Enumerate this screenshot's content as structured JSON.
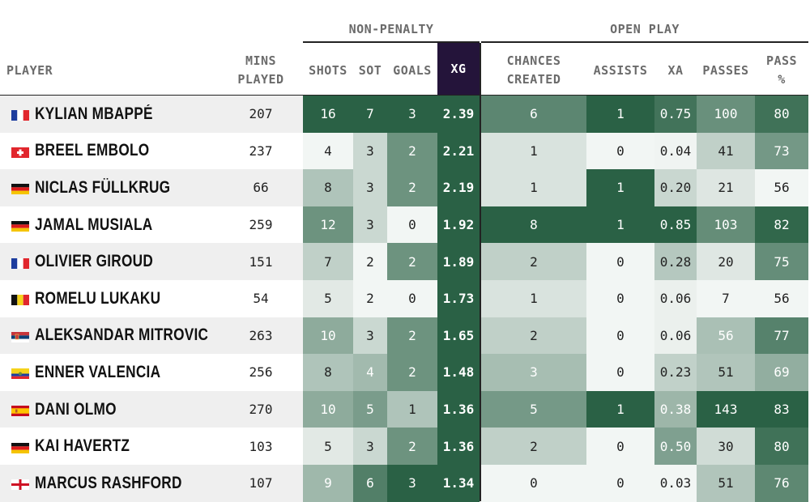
{
  "groups": {
    "non_penalty": "NON-PENALTY",
    "open_play": "OPEN PLAY"
  },
  "headers": {
    "player": "PLAYER",
    "mins_line1": "MINS",
    "mins_line2": "PLAYED",
    "shots": "SHOTS",
    "sot": "SOT",
    "goals": "GOALS",
    "xg": "XG",
    "chances_line1": "CHANCES",
    "chances_line2": "CREATED",
    "assists": "ASSISTS",
    "xa": "XA",
    "passes": "PASSES",
    "pass_pct_line1": "PASS",
    "pass_pct_line2": "%"
  },
  "colors": {
    "dark_green": "#2a6145",
    "xg_header": "#24143a",
    "row_shade": "#efefef"
  },
  "chart_data": {
    "type": "table",
    "columns": [
      "PLAYER",
      "MINS PLAYED",
      "SHOTS",
      "SOT",
      "GOALS",
      "XG",
      "CHANCES CREATED",
      "ASSISTS",
      "XA",
      "PASSES",
      "PASS %"
    ],
    "rows": [
      {
        "flag": "france-flag",
        "player": "KYLIAN MBAPPÉ",
        "mins": "207",
        "shots": "16",
        "sot": "7",
        "goals": "3",
        "xg": "2.39",
        "chances": "6",
        "assists": "1",
        "xa": "0.75",
        "passes": "100",
        "pass_pct": "80"
      },
      {
        "flag": "switzerland-flag",
        "player": "BREEL EMBOLO",
        "mins": "237",
        "shots": "4",
        "sot": "3",
        "goals": "2",
        "xg": "2.21",
        "chances": "1",
        "assists": "0",
        "xa": "0.04",
        "passes": "41",
        "pass_pct": "73"
      },
      {
        "flag": "germany-flag",
        "player": "NICLAS FÜLLKRUG",
        "mins": "66",
        "shots": "8",
        "sot": "3",
        "goals": "2",
        "xg": "2.19",
        "chances": "1",
        "assists": "1",
        "xa": "0.20",
        "passes": "21",
        "pass_pct": "56"
      },
      {
        "flag": "germany-flag",
        "player": "JAMAL MUSIALA",
        "mins": "259",
        "shots": "12",
        "sot": "3",
        "goals": "0",
        "xg": "1.92",
        "chances": "8",
        "assists": "1",
        "xa": "0.85",
        "passes": "103",
        "pass_pct": "82"
      },
      {
        "flag": "france-flag",
        "player": "OLIVIER GIROUD",
        "mins": "151",
        "shots": "7",
        "sot": "2",
        "goals": "2",
        "xg": "1.89",
        "chances": "2",
        "assists": "0",
        "xa": "0.28",
        "passes": "20",
        "pass_pct": "75"
      },
      {
        "flag": "belgium-flag",
        "player": "ROMELU LUKAKU",
        "mins": "54",
        "shots": "5",
        "sot": "2",
        "goals": "0",
        "xg": "1.73",
        "chances": "1",
        "assists": "0",
        "xa": "0.06",
        "passes": "7",
        "pass_pct": "56"
      },
      {
        "flag": "serbia-flag",
        "player": "ALEKSANDAR MITROVIC",
        "mins": "263",
        "shots": "10",
        "sot": "3",
        "goals": "2",
        "xg": "1.65",
        "chances": "2",
        "assists": "0",
        "xa": "0.06",
        "passes": "56",
        "pass_pct": "77"
      },
      {
        "flag": "ecuador-flag",
        "player": "ENNER VALENCIA",
        "mins": "256",
        "shots": "8",
        "sot": "4",
        "goals": "2",
        "xg": "1.48",
        "chances": "3",
        "assists": "0",
        "xa": "0.23",
        "passes": "51",
        "pass_pct": "69"
      },
      {
        "flag": "spain-flag",
        "player": "DANI OLMO",
        "mins": "270",
        "shots": "10",
        "sot": "5",
        "goals": "1",
        "xg": "1.36",
        "chances": "5",
        "assists": "1",
        "xa": "0.38",
        "passes": "143",
        "pass_pct": "83"
      },
      {
        "flag": "germany-flag",
        "player": "KAI HAVERTZ",
        "mins": "103",
        "shots": "5",
        "sot": "3",
        "goals": "2",
        "xg": "1.36",
        "chances": "2",
        "assists": "0",
        "xa": "0.50",
        "passes": "30",
        "pass_pct": "80"
      },
      {
        "flag": "england-flag",
        "player": "MARCUS RASHFORD",
        "mins": "107",
        "shots": "9",
        "sot": "6",
        "goals": "3",
        "xg": "1.34",
        "chances": "0",
        "assists": "0",
        "xa": "0.03",
        "passes": "51",
        "pass_pct": "76"
      }
    ]
  }
}
